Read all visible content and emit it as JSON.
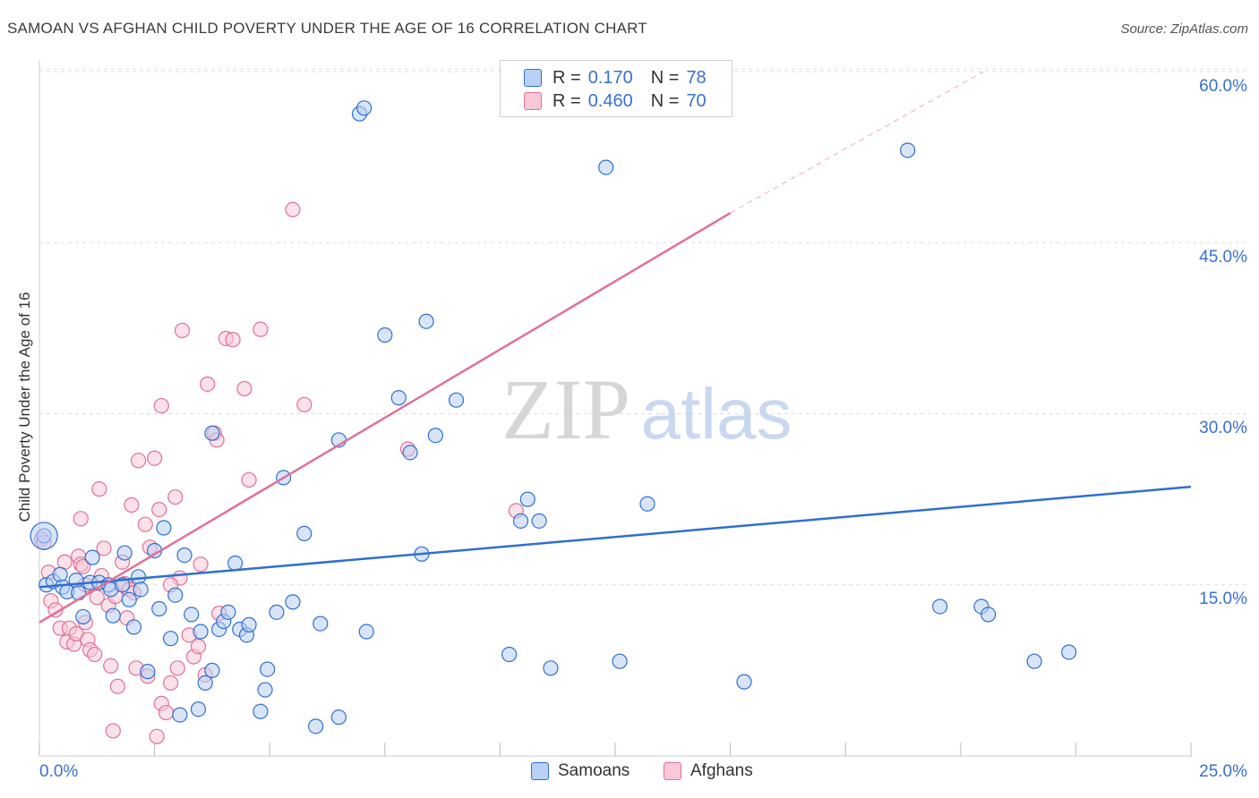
{
  "title": "SAMOAN VS AFGHAN CHILD POVERTY UNDER THE AGE OF 16 CORRELATION CHART",
  "source": "Source: ZipAtlas.com",
  "watermark": {
    "zip": "ZIP",
    "atlas": "atlas"
  },
  "legend": [
    {
      "r_label": "R =",
      "r_value": "0.170",
      "n_label": "N =",
      "n_value": "78",
      "color": "#6f9fe8"
    },
    {
      "r_label": "R =",
      "r_value": "0.460",
      "n_label": "N =",
      "n_value": "70",
      "color": "#f0a0b8"
    }
  ],
  "bottom_legend": [
    "Samoans",
    "Afghans"
  ],
  "colors": {
    "samoan_line": "#2f6fd1",
    "afghan_line": "#e07098",
    "samoan_fill": "#b8d0f4",
    "afghan_fill": "#f8c8d6",
    "tick_text": "#3a6fd1"
  },
  "chart_data": {
    "type": "scatter",
    "title": "SAMOAN VS AFGHAN CHILD POVERTY UNDER THE AGE OF 16 CORRELATION CHART",
    "xlabel": "",
    "ylabel": "Child Poverty Under the Age of 16",
    "xlim": [
      0,
      25
    ],
    "ylim": [
      0,
      60
    ],
    "x_tick_labels": [
      "0.0%",
      "25.0%"
    ],
    "y_tick_labels": [
      "15.0%",
      "30.0%",
      "45.0%",
      "60.0%"
    ],
    "y_ticks": [
      15,
      30,
      45,
      60
    ],
    "series": [
      {
        "name": "Samoans",
        "r": 0.17,
        "n": 78,
        "trend": {
          "x": [
            0,
            25
          ],
          "y": [
            14.8,
            23.6
          ]
        },
        "points": [
          [
            0.1,
            19.3
          ],
          [
            0.15,
            15.0
          ],
          [
            0.3,
            15.3
          ],
          [
            0.45,
            15.9
          ],
          [
            0.5,
            14.8
          ],
          [
            0.6,
            14.4
          ],
          [
            0.8,
            15.4
          ],
          [
            0.85,
            14.3
          ],
          [
            0.95,
            12.2
          ],
          [
            1.1,
            15.2
          ],
          [
            1.15,
            17.4
          ],
          [
            1.3,
            15.2
          ],
          [
            1.5,
            15.0
          ],
          [
            1.55,
            14.6
          ],
          [
            1.6,
            12.3
          ],
          [
            1.8,
            15.0
          ],
          [
            1.85,
            17.8
          ],
          [
            1.95,
            13.7
          ],
          [
            2.05,
            11.3
          ],
          [
            2.15,
            15.7
          ],
          [
            2.2,
            14.6
          ],
          [
            2.35,
            7.4
          ],
          [
            2.5,
            18.0
          ],
          [
            2.6,
            12.9
          ],
          [
            2.7,
            20.0
          ],
          [
            2.85,
            10.3
          ],
          [
            2.95,
            14.1
          ],
          [
            3.05,
            3.6
          ],
          [
            3.15,
            17.6
          ],
          [
            3.3,
            12.4
          ],
          [
            3.45,
            4.1
          ],
          [
            3.5,
            10.9
          ],
          [
            3.6,
            6.4
          ],
          [
            3.75,
            7.5
          ],
          [
            3.75,
            28.3
          ],
          [
            3.9,
            11.1
          ],
          [
            4.0,
            11.8
          ],
          [
            4.1,
            12.6
          ],
          [
            4.25,
            16.9
          ],
          [
            4.35,
            11.1
          ],
          [
            4.5,
            10.6
          ],
          [
            4.55,
            11.5
          ],
          [
            4.8,
            3.9
          ],
          [
            4.9,
            5.8
          ],
          [
            4.95,
            7.6
          ],
          [
            5.15,
            12.6
          ],
          [
            5.3,
            24.4
          ],
          [
            5.5,
            13.5
          ],
          [
            5.75,
            19.5
          ],
          [
            6.0,
            2.6
          ],
          [
            6.1,
            11.6
          ],
          [
            6.5,
            3.4
          ],
          [
            6.5,
            27.7
          ],
          [
            6.95,
            56.3
          ],
          [
            7.05,
            56.8
          ],
          [
            7.1,
            10.9
          ],
          [
            7.5,
            36.9
          ],
          [
            7.8,
            31.4
          ],
          [
            8.05,
            26.6
          ],
          [
            8.3,
            17.7
          ],
          [
            8.4,
            38.1
          ],
          [
            8.6,
            28.1
          ],
          [
            9.05,
            31.2
          ],
          [
            10.2,
            8.9
          ],
          [
            10.45,
            20.6
          ],
          [
            10.6,
            22.5
          ],
          [
            10.85,
            20.6
          ],
          [
            11.1,
            7.7
          ],
          [
            12.3,
            51.6
          ],
          [
            12.6,
            8.3
          ],
          [
            13.2,
            22.1
          ],
          [
            15.3,
            6.5
          ],
          [
            18.85,
            53.1
          ],
          [
            19.55,
            13.1
          ],
          [
            20.45,
            13.1
          ],
          [
            20.6,
            12.4
          ],
          [
            21.6,
            8.3
          ],
          [
            22.35,
            9.1
          ]
        ]
      },
      {
        "name": "Afghans",
        "r": 0.46,
        "n": 70,
        "trend": {
          "x": [
            0,
            15.0
          ],
          "y": [
            11.7,
            47.6
          ]
        },
        "trend_dashed": {
          "x": [
            15.0,
            20.5
          ],
          "y": [
            47.6,
            60.0
          ]
        },
        "points": [
          [
            0.05,
            19.0
          ],
          [
            0.1,
            18.7
          ],
          [
            0.2,
            16.1
          ],
          [
            0.25,
            13.6
          ],
          [
            0.35,
            12.8
          ],
          [
            0.45,
            11.2
          ],
          [
            0.55,
            17.0
          ],
          [
            0.6,
            10.0
          ],
          [
            0.65,
            11.2
          ],
          [
            0.75,
            9.8
          ],
          [
            0.8,
            10.7
          ],
          [
            0.85,
            17.5
          ],
          [
            0.9,
            16.8
          ],
          [
            0.9,
            20.8
          ],
          [
            0.95,
            16.6
          ],
          [
            1.0,
            15.0
          ],
          [
            1.0,
            11.7
          ],
          [
            1.05,
            10.2
          ],
          [
            1.1,
            9.3
          ],
          [
            1.2,
            8.9
          ],
          [
            1.25,
            13.9
          ],
          [
            1.3,
            23.4
          ],
          [
            1.35,
            15.8
          ],
          [
            1.4,
            18.2
          ],
          [
            1.5,
            13.2
          ],
          [
            1.55,
            7.9
          ],
          [
            1.6,
            2.2
          ],
          [
            1.65,
            14.0
          ],
          [
            1.7,
            6.1
          ],
          [
            1.8,
            17.0
          ],
          [
            1.85,
            15.1
          ],
          [
            1.9,
            12.1
          ],
          [
            1.95,
            14.6
          ],
          [
            2.0,
            22.0
          ],
          [
            2.05,
            14.3
          ],
          [
            2.1,
            7.7
          ],
          [
            2.15,
            25.9
          ],
          [
            2.3,
            20.3
          ],
          [
            2.35,
            7.0
          ],
          [
            2.4,
            18.3
          ],
          [
            2.5,
            26.1
          ],
          [
            2.55,
            1.7
          ],
          [
            2.6,
            21.6
          ],
          [
            2.65,
            4.6
          ],
          [
            2.65,
            30.7
          ],
          [
            2.75,
            3.8
          ],
          [
            2.85,
            6.4
          ],
          [
            2.95,
            22.7
          ],
          [
            3.0,
            7.7
          ],
          [
            3.05,
            15.6
          ],
          [
            3.1,
            37.3
          ],
          [
            3.25,
            10.6
          ],
          [
            3.35,
            8.7
          ],
          [
            3.45,
            9.6
          ],
          [
            3.5,
            16.8
          ],
          [
            3.6,
            7.1
          ],
          [
            3.65,
            32.6
          ],
          [
            3.8,
            28.3
          ],
          [
            3.85,
            27.7
          ],
          [
            3.9,
            12.5
          ],
          [
            4.05,
            36.6
          ],
          [
            4.2,
            36.5
          ],
          [
            4.45,
            32.2
          ],
          [
            4.55,
            24.2
          ],
          [
            4.8,
            37.4
          ],
          [
            5.5,
            47.9
          ],
          [
            5.75,
            30.8
          ],
          [
            8.0,
            26.9
          ],
          [
            10.35,
            21.5
          ],
          [
            2.85,
            15.0
          ]
        ]
      }
    ]
  }
}
